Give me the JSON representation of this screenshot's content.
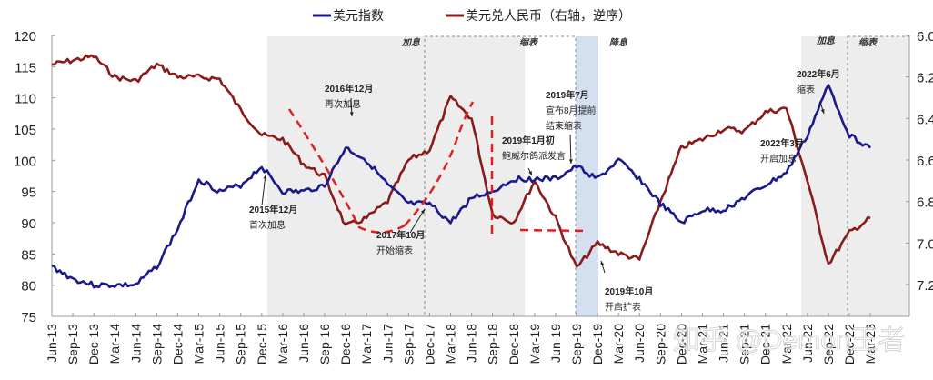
{
  "chart_data": {
    "type": "line",
    "title": "",
    "legend": {
      "position": "top",
      "entries": [
        {
          "name": "美元指数",
          "color": "#1a1a8c",
          "axis": "left"
        },
        {
          "name": "美元兑人民币（右轴，逆序）",
          "color": "#8b1a1a",
          "axis": "right"
        }
      ]
    },
    "left_axis": {
      "ticks": [
        120,
        115,
        110,
        105,
        100,
        95,
        90,
        85,
        80,
        75
      ],
      "ylim": [
        75,
        120
      ]
    },
    "right_axis": {
      "ticks": [
        "6.0",
        "6.2",
        "6.4",
        "6.6",
        "6.8",
        "7.0",
        "7.2"
      ],
      "ylim": [
        6.0,
        7.3
      ],
      "reversed": true
    },
    "x_ticks": [
      "Jun-13",
      "Sep-13",
      "Dec-13",
      "Mar-14",
      "Jun-14",
      "Sep-14",
      "Dec-14",
      "Mar-15",
      "Jun-15",
      "Sep-15",
      "Dec-15",
      "Mar-16",
      "Jun-16",
      "Sep-16",
      "Dec-16",
      "Mar-17",
      "Jun-17",
      "Sep-17",
      "Dec-17",
      "Mar-18",
      "Jun-18",
      "Sep-18",
      "Dec-18",
      "Mar-19",
      "Jun-19",
      "Sep-19",
      "Dec-19",
      "Mar-20",
      "Jun-20",
      "Sep-20",
      "Dec-20",
      "Mar-21",
      "Jun-21",
      "Sep-21",
      "Dec-21",
      "Mar-22",
      "Jun-22",
      "Sep-22",
      "Dec-22",
      "Mar-23"
    ],
    "series": [
      {
        "name": "美元指数",
        "values": [
          83,
          81,
          80,
          80,
          80,
          83,
          89,
          97,
          95,
          96,
          99,
          95,
          95,
          96,
          102,
          100,
          96,
          93,
          93,
          90,
          94,
          95,
          97,
          97,
          97,
          99,
          97,
          100,
          97,
          93,
          90,
          92,
          92,
          94,
          96,
          98,
          104,
          112,
          104,
          102
        ]
      },
      {
        "name": "美元兑人民币（右轴，逆序）",
        "values": [
          6.14,
          6.12,
          6.1,
          6.2,
          6.22,
          6.14,
          6.2,
          6.2,
          6.21,
          6.36,
          6.48,
          6.5,
          6.62,
          6.68,
          6.92,
          6.88,
          6.8,
          6.6,
          6.55,
          6.3,
          6.4,
          6.86,
          6.9,
          6.7,
          6.88,
          7.12,
          7.0,
          7.05,
          7.08,
          6.8,
          6.54,
          6.5,
          6.45,
          6.46,
          6.37,
          6.35,
          6.7,
          7.1,
          6.95,
          6.88
        ]
      }
    ],
    "regions": [
      {
        "label": "加息",
        "from": "Dec-15",
        "to": "Dec-18",
        "style": "gray"
      },
      {
        "label": "缩表",
        "from": "Oct-17",
        "to": "Aug-19",
        "style": "dashed"
      },
      {
        "label": "降息",
        "from": "Aug-19",
        "to": "Oct-19",
        "style": "blue"
      },
      {
        "label": "加息",
        "from": "Mar-22",
        "to": "end",
        "style": "gray"
      },
      {
        "label": "缩表",
        "from": "Jun-22",
        "to": "end",
        "style": "dashed"
      }
    ],
    "annotations": [
      {
        "line1": "2015年12月",
        "line2": "首次加息"
      },
      {
        "line1": "2016年12月",
        "line2": "再次加息"
      },
      {
        "line1": "2017年10月",
        "line2": "开始缩表"
      },
      {
        "line1": "2019年1月初",
        "line2": "鲍威尔鸽派发言"
      },
      {
        "line1": "2019年7月",
        "line2": "宣布8月提前",
        "line3": "结束缩表"
      },
      {
        "line1": "2019年10月",
        "line2": "开启扩表"
      },
      {
        "line1": "2022年3月",
        "line2": "开启加息"
      },
      {
        "line1": "2022年6月",
        "line2": "缩表"
      }
    ],
    "watermark": "知乎 @Demon王者",
    "grid": false
  }
}
